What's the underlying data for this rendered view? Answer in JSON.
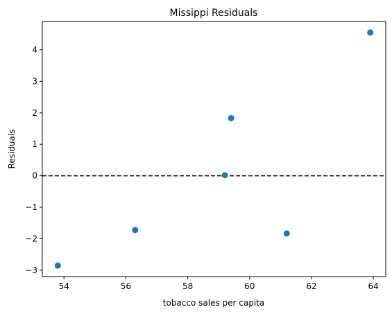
{
  "chart_data": {
    "type": "scatter",
    "title": "Missippi Residuals",
    "xlabel": "tobacco sales per capita",
    "ylabel": "Residuals",
    "xlim": [
      53.3,
      64.4
    ],
    "ylim": [
      -3.2,
      4.9
    ],
    "xticks": [
      54,
      56,
      58,
      60,
      62,
      64
    ],
    "xtick_labels": [
      "54",
      "56",
      "58",
      "60",
      "62",
      "64"
    ],
    "yticks": [
      -3,
      -2,
      -1,
      0,
      1,
      2,
      3,
      4
    ],
    "ytick_labels": [
      "−3",
      "−2",
      "−1",
      "0",
      "1",
      "2",
      "3",
      "4"
    ],
    "grid": false,
    "points": [
      {
        "x": 53.8,
        "y": -2.85
      },
      {
        "x": 56.3,
        "y": -1.72
      },
      {
        "x": 59.2,
        "y": 0.02
      },
      {
        "x": 59.4,
        "y": 1.83
      },
      {
        "x": 61.2,
        "y": -1.83
      },
      {
        "x": 63.9,
        "y": 4.55
      }
    ],
    "reference_line": {
      "y": 0,
      "style": "dashed",
      "color": "#000000"
    },
    "marker_color": "#1f77b4"
  }
}
